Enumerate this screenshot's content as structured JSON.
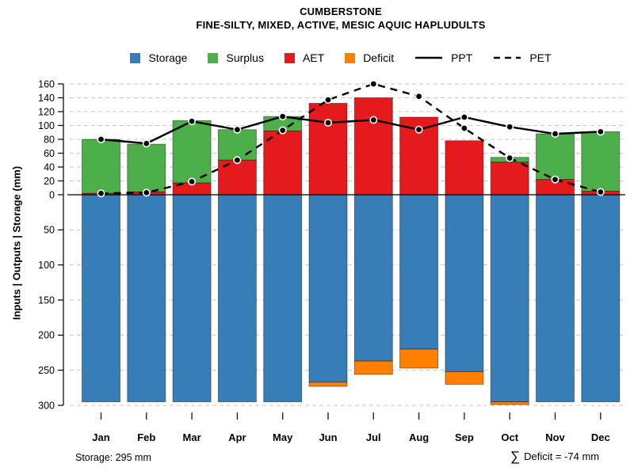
{
  "chart_data": {
    "type": "bar",
    "title": "CUMBERSTONE",
    "subtitle": "FINE-SILTY, MIXED, ACTIVE, MESIC AQUIC HAPLUDULTS",
    "ylabel": "Inputs | Outputs | Storage   (mm)",
    "categories": [
      "Jan",
      "Feb",
      "Mar",
      "Apr",
      "May",
      "Jun",
      "Jul",
      "Aug",
      "Sep",
      "Oct",
      "Nov",
      "Dec"
    ],
    "upper_axis": {
      "lim": [
        0,
        160
      ],
      "ticks": [
        0,
        20,
        40,
        60,
        80,
        100,
        120,
        140,
        160
      ],
      "grid": true
    },
    "lower_axis": {
      "lim": [
        0,
        300
      ],
      "ticks": [
        50,
        100,
        150,
        200,
        250,
        300
      ],
      "grid": true,
      "direction": "down"
    },
    "series": [
      {
        "name": "AET",
        "type": "bar-up",
        "color": "#E41A1C",
        "values": [
          2,
          4,
          17,
          50,
          92,
          132,
          140,
          112,
          78,
          47,
          22,
          5
        ]
      },
      {
        "name": "Surplus",
        "type": "bar-up-stacked",
        "color": "#4DAF4A",
        "values": [
          78,
          69,
          90,
          44,
          21,
          0,
          0,
          0,
          0,
          7,
          66,
          86
        ]
      },
      {
        "name": "Storage",
        "type": "bar-down",
        "color": "#377EB8",
        "values": [
          295,
          295,
          295,
          295,
          295,
          267,
          237,
          220,
          252,
          295,
          295,
          295
        ]
      },
      {
        "name": "Deficit",
        "type": "bar-down-append",
        "color": "#FF7F00",
        "values": [
          0,
          0,
          0,
          0,
          0,
          6,
          19,
          27,
          18,
          4,
          0,
          0
        ]
      },
      {
        "name": "PPT",
        "type": "line-solid",
        "color": "#000000",
        "values": [
          80,
          74,
          106,
          94,
          113,
          104,
          108,
          94,
          112,
          98,
          88,
          91
        ]
      },
      {
        "name": "PET",
        "type": "line-dashed",
        "color": "#000000",
        "values": [
          2,
          3,
          19,
          50,
          93,
          137,
          160,
          142,
          96,
          53,
          22,
          4
        ]
      }
    ],
    "legend": {
      "position": "top-center",
      "items": [
        {
          "label": "Storage",
          "sample": "box",
          "color": "#377EB8"
        },
        {
          "label": "Surplus",
          "sample": "box",
          "color": "#4DAF4A"
        },
        {
          "label": "AET",
          "sample": "box",
          "color": "#E41A1C"
        },
        {
          "label": "Deficit",
          "sample": "box",
          "color": "#FF7F00"
        },
        {
          "label": "PPT",
          "sample": "line-solid",
          "color": "#000000"
        },
        {
          "label": "PET",
          "sample": "line-dashed",
          "color": "#000000"
        }
      ]
    },
    "annotations": {
      "storage_label": "Storage: 295 mm",
      "deficit_sigma": "∑",
      "deficit_label": "Deficit = -74 mm"
    },
    "colors": {
      "grid": "#C6C6C6",
      "axis": "#000000"
    }
  }
}
